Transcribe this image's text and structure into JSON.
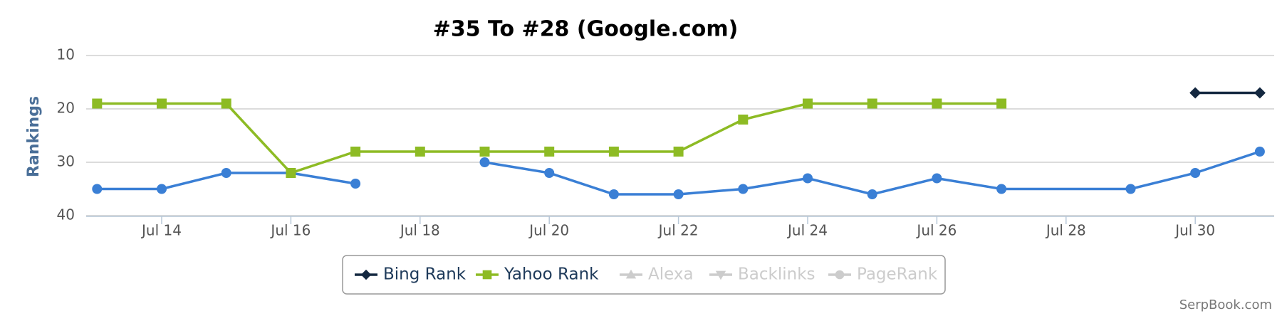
{
  "chart_data": {
    "type": "line",
    "title": "#35 To #28 (Google.com)",
    "y_label": "Rankings",
    "credit": "SerpBook.com",
    "ylim": [
      40,
      10
    ],
    "yticks": [
      10,
      20,
      30,
      40
    ],
    "xticks": [
      "Jul 14",
      "Jul 16",
      "Jul 18",
      "Jul 20",
      "Jul 22",
      "Jul 24",
      "Jul 26",
      "Jul 28",
      "Jul 30"
    ],
    "grid": true,
    "legend": "bottom",
    "series": [
      {
        "color": "#3a7fd5",
        "marker": "circle",
        "x": [
          "Jul 13",
          "Jul 14",
          "Jul 15",
          "Jul 16",
          "Jul 17",
          "Jul 18",
          "Jul 19",
          "Jul 20",
          "Jul 21",
          "Jul 22",
          "Jul 23",
          "Jul 24",
          "Jul 25",
          "Jul 26",
          "Jul 27",
          "Jul 29",
          "Jul 30",
          "Jul 31"
        ],
        "values": [
          35,
          35,
          32,
          32,
          34,
          null,
          30,
          32,
          36,
          36,
          35,
          33,
          36,
          33,
          35,
          35,
          32,
          28
        ]
      },
      {
        "name": "Bing Rank",
        "color": "#142840",
        "marker": "diamond",
        "visible": true,
        "x": [
          "Jul 30",
          "Jul 31"
        ],
        "values": [
          17,
          17
        ]
      },
      {
        "name": "Yahoo Rank",
        "color": "#8dbb24",
        "marker": "square",
        "visible": true,
        "x": [
          "Jul 13",
          "Jul 14",
          "Jul 15",
          "Jul 16",
          "Jul 17",
          "Jul 18",
          "Jul 19",
          "Jul 20",
          "Jul 21",
          "Jul 22",
          "Jul 23",
          "Jul 24",
          "Jul 25",
          "Jul 26",
          "Jul 27"
        ],
        "values": [
          19,
          19,
          19,
          32,
          28,
          28,
          28,
          28,
          28,
          28,
          22,
          19,
          19,
          19,
          19
        ]
      },
      {
        "name": "Alexa",
        "color": "#cccccc",
        "marker": "triangle",
        "visible": false,
        "x": [],
        "values": []
      },
      {
        "name": "Backlinks",
        "color": "#cccccc",
        "marker": "triangle-down",
        "visible": false,
        "x": [],
        "values": []
      },
      {
        "name": "PageRank",
        "color": "#cccccc",
        "marker": "circle",
        "visible": false,
        "x": [],
        "values": []
      }
    ]
  }
}
